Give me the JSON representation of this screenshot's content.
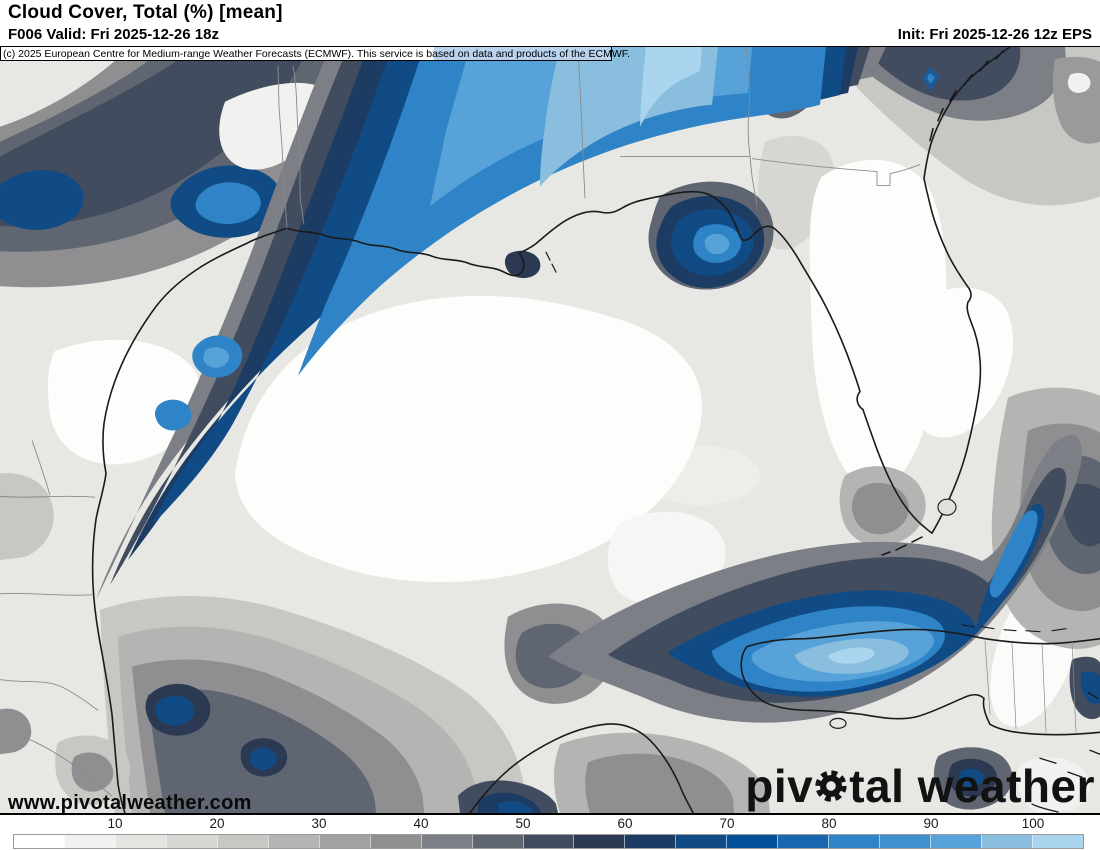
{
  "header": {
    "title": "Cloud Cover, Total (%) [mean]",
    "valid": "F006 Valid: Fri 2025-12-26 18z",
    "init": "Init: Fri 2025-12-26 12z EPS"
  },
  "copyright": "(c) 2025 European Centre for Medium-range Weather Forecasts (ECMWF). This service is based on data and products of the ECMWF.",
  "watermark": "www.pivotalweather.com",
  "logo": {
    "full": "pivotal weather",
    "prefix": "piv",
    "suffix": "tal weather",
    "gear_icon": "gear-icon"
  },
  "colorbar": {
    "unit": "%",
    "tick_labels": [
      "10",
      "20",
      "30",
      "40",
      "50",
      "60",
      "70",
      "80",
      "90",
      "100"
    ],
    "segment_values": [
      0,
      5,
      10,
      15,
      20,
      25,
      30,
      35,
      40,
      45,
      50,
      55,
      60,
      65,
      70,
      75,
      80,
      85,
      90,
      95,
      100
    ],
    "segment_colors": [
      "#ffffff",
      "#f1f1ef",
      "#e4e4e1",
      "#d6d6d2",
      "#c7c7c3",
      "#b4b4b2",
      "#a2a2a2",
      "#8f8f91",
      "#7c7f85",
      "#5f6571",
      "#414c5f",
      "#2b3a52",
      "#1c3c63",
      "#114b86",
      "#05509b",
      "#1766ae",
      "#2e84c6",
      "#3f90cc",
      "#57a2d8",
      "#8abede",
      "#abd4ef"
    ]
  },
  "map_colors": {
    "low_cloud": "#ffffff",
    "mid_cloud_gray": "#8f8f91",
    "high_cloud_blue": "#2e84c6",
    "very_high_cloud_blue": "#abd4ef",
    "coastline": "#1a1a1a",
    "state_border": "#8a8a8a"
  }
}
